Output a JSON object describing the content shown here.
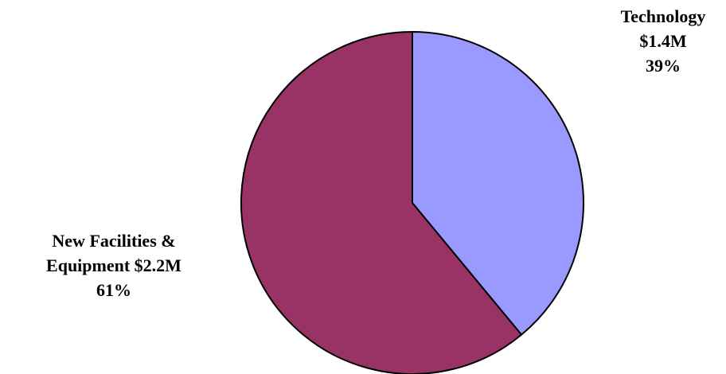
{
  "chart_data": {
    "type": "pie",
    "title": "",
    "slices": [
      {
        "label": "Technology",
        "amount_text": "$1.4M",
        "percent_text": "39%",
        "value": 1.4,
        "percent": 39,
        "color": "#9999ff"
      },
      {
        "label": "New Facilities & Equipment",
        "amount_text": "$2.2M",
        "percent_text": "61%",
        "value": 2.2,
        "percent": 61,
        "color": "#993366"
      }
    ],
    "legend": "none"
  },
  "labels": {
    "technology": {
      "line1": "Technology",
      "line2": "$1.4M",
      "line3": "39%"
    },
    "facilities": {
      "line1": "New Facilities &",
      "line2": "Equipment $2.2M",
      "line3": "61%"
    }
  }
}
